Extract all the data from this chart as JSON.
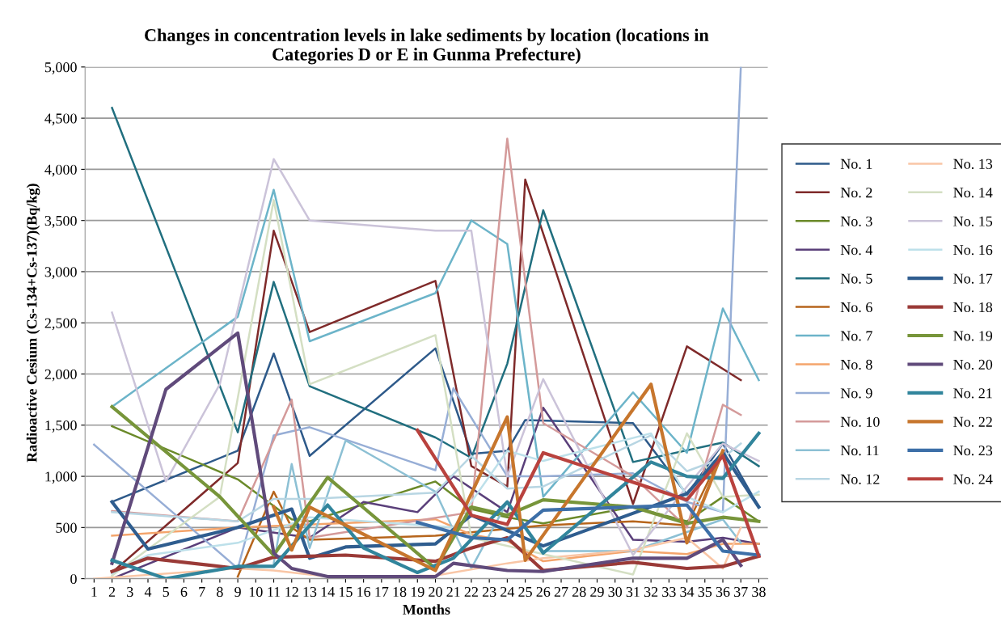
{
  "chart_data": {
    "type": "line",
    "title": "Changes in concentration levels in lake sediments by location (locations in\nCategories D or E in Gunma Prefecture)",
    "xlabel": "Months",
    "ylabel": "Radioactive Cesium (Cs-134+Cs-137)(Bq/kg)",
    "categories": [
      "1",
      "2",
      "3",
      "4",
      "5",
      "6",
      "7",
      "8",
      "9",
      "10",
      "11",
      "12",
      "13",
      "14",
      "15",
      "16",
      "17",
      "18",
      "19",
      "20",
      "21",
      "22",
      "23",
      "24",
      "25",
      "26",
      "27",
      "28",
      "29",
      "30",
      "31",
      "32",
      "33",
      "34",
      "35",
      "36",
      "37",
      "38"
    ],
    "ylim": [
      0,
      5000
    ],
    "yticks": [
      {
        "value": 0,
        "label": "0"
      },
      {
        "value": 500,
        "label": "500"
      },
      {
        "value": 1000,
        "label": "1,000"
      },
      {
        "value": 1500,
        "label": "1,500"
      },
      {
        "value": 2000,
        "label": "2,000"
      },
      {
        "value": 2500,
        "label": "2,500"
      },
      {
        "value": 3000,
        "label": "3,000"
      },
      {
        "value": 3500,
        "label": "3,500"
      },
      {
        "value": 4000,
        "label": "4,000"
      },
      {
        "value": 4500,
        "label": "4,500"
      },
      {
        "value": 5000,
        "label": "5,000"
      }
    ],
    "grid": "y",
    "legend": "right",
    "marker": "none",
    "line_style": "solid",
    "series": [
      {
        "name": "No. 1",
        "color": "#2e5a8a",
        "values": [
          null,
          750,
          null,
          null,
          null,
          null,
          null,
          null,
          1250,
          null,
          2200,
          null,
          1200,
          null,
          null,
          null,
          null,
          null,
          null,
          2250,
          null,
          1220,
          null,
          1250,
          1550,
          null,
          null,
          null,
          null,
          null,
          1520,
          null,
          null,
          820,
          null,
          1320,
          null,
          700
        ]
      },
      {
        "name": "No. 2",
        "color": "#7f2a2a",
        "values": [
          null,
          60,
          null,
          null,
          null,
          null,
          null,
          null,
          1130,
          null,
          3400,
          null,
          2410,
          null,
          null,
          null,
          null,
          null,
          null,
          2910,
          null,
          1100,
          null,
          900,
          3900,
          null,
          null,
          null,
          null,
          null,
          730,
          null,
          null,
          2270,
          null,
          null,
          1940,
          null
        ]
      },
      {
        "name": "No. 3",
        "color": "#6b8a2a",
        "values": [
          null,
          1490,
          null,
          null,
          null,
          null,
          null,
          null,
          970,
          null,
          null,
          580,
          560,
          null,
          null,
          null,
          null,
          null,
          null,
          950,
          null,
          680,
          null,
          600,
          null,
          540,
          null,
          null,
          null,
          null,
          700,
          null,
          null,
          560,
          null,
          800,
          null,
          560
        ]
      },
      {
        "name": "No. 4",
        "color": "#5a3f7a",
        "values": [
          null,
          0,
          null,
          null,
          null,
          null,
          null,
          null,
          500,
          null,
          null,
          null,
          400,
          null,
          null,
          750,
          null,
          null,
          650,
          null,
          1000,
          null,
          null,
          650,
          null,
          1670,
          null,
          null,
          null,
          null,
          380,
          null,
          null,
          360,
          null,
          400,
          null,
          340
        ]
      },
      {
        "name": "No. 5",
        "color": "#216f7f",
        "values": [
          null,
          4600,
          null,
          null,
          null,
          null,
          null,
          null,
          1430,
          null,
          2900,
          null,
          1880,
          null,
          null,
          null,
          null,
          null,
          null,
          1380,
          null,
          1180,
          null,
          2100,
          null,
          3600,
          null,
          null,
          null,
          null,
          1140,
          null,
          null,
          null,
          null,
          1330,
          null,
          1100
        ]
      },
      {
        "name": "No. 6",
        "color": "#b6651c",
        "values": [
          null,
          null,
          null,
          null,
          null,
          null,
          null,
          null,
          20,
          null,
          850,
          500,
          380,
          null,
          null,
          null,
          null,
          null,
          null,
          420,
          null,
          null,
          null,
          null,
          null,
          520,
          null,
          null,
          null,
          null,
          560,
          null,
          null,
          520,
          null,
          1250,
          null,
          null
        ]
      },
      {
        "name": "No. 7",
        "color": "#6cb4c9",
        "values": [
          null,
          1680,
          null,
          null,
          null,
          null,
          null,
          null,
          2560,
          null,
          3800,
          null,
          2320,
          null,
          null,
          null,
          null,
          null,
          null,
          2790,
          null,
          3500,
          null,
          3270,
          null,
          800,
          null,
          null,
          null,
          null,
          1820,
          null,
          null,
          1230,
          null,
          2640,
          null,
          1940
        ]
      },
      {
        "name": "No. 8",
        "color": "#f4a46b",
        "values": [
          null,
          420,
          null,
          null,
          null,
          null,
          null,
          null,
          500,
          null,
          null,
          null,
          null,
          null,
          null,
          null,
          null,
          null,
          null,
          580,
          null,
          430,
          null,
          370,
          null,
          170,
          null,
          null,
          null,
          null,
          270,
          null,
          null,
          240,
          null,
          340,
          null,
          340
        ]
      },
      {
        "name": "No. 9",
        "color": "#97aed6",
        "values": [
          1310,
          null,
          null,
          null,
          null,
          null,
          null,
          null,
          100,
          null,
          1400,
          null,
          1480,
          null,
          null,
          null,
          null,
          null,
          null,
          1060,
          1860,
          null,
          null,
          1000,
          null,
          1000,
          null,
          null,
          null,
          null,
          1030,
          null,
          null,
          750,
          null,
          650,
          5000,
          null
        ]
      },
      {
        "name": "No. 10",
        "color": "#d49a9a",
        "values": [
          null,
          660,
          null,
          null,
          null,
          null,
          null,
          null,
          560,
          null,
          null,
          1750,
          400,
          null,
          null,
          null,
          null,
          null,
          null,
          null,
          null,
          650,
          null,
          4300,
          null,
          1520,
          null,
          null,
          null,
          null,
          1000,
          null,
          null,
          500,
          null,
          1700,
          1600,
          null
        ]
      },
      {
        "name": "No. 11",
        "color": "#8cc0d4",
        "values": [
          null,
          null,
          null,
          null,
          null,
          null,
          null,
          null,
          null,
          null,
          150,
          1120,
          300,
          null,
          1350,
          null,
          null,
          null,
          null,
          850,
          null,
          100,
          null,
          750,
          null,
          270,
          null,
          null,
          null,
          null,
          270,
          null,
          null,
          null,
          null,
          580,
          350,
          null
        ]
      },
      {
        "name": "No. 12",
        "color": "#b8d6e3",
        "values": [
          null,
          650,
          null,
          null,
          null,
          null,
          null,
          null,
          560,
          null,
          780,
          null,
          780,
          null,
          null,
          null,
          null,
          null,
          null,
          840,
          null,
          1200,
          null,
          880,
          null,
          900,
          null,
          null,
          null,
          null,
          null,
          1400,
          null,
          1050,
          null,
          1180,
          1320,
          null
        ]
      },
      {
        "name": "No. 13",
        "color": "#f9c6a6",
        "values": [
          0,
          null,
          null,
          null,
          null,
          null,
          null,
          null,
          100,
          null,
          80,
          null,
          null,
          20,
          null,
          null,
          null,
          null,
          null,
          30,
          null,
          null,
          null,
          150,
          null,
          200,
          null,
          null,
          null,
          null,
          280,
          null,
          null,
          400,
          null,
          100,
          500,
          null
        ]
      },
      {
        "name": "No. 14",
        "color": "#d4dfc3",
        "values": [
          null,
          30,
          null,
          null,
          null,
          null,
          null,
          800,
          null,
          null,
          3700,
          null,
          1900,
          null,
          null,
          null,
          null,
          null,
          null,
          2380,
          null,
          400,
          null,
          null,
          null,
          null,
          null,
          null,
          null,
          null,
          40,
          null,
          null,
          1420,
          null,
          800,
          null,
          820
        ]
      },
      {
        "name": "No. 15",
        "color": "#cbc3d9",
        "values": [
          null,
          2600,
          null,
          null,
          950,
          null,
          null,
          1900,
          null,
          null,
          4100,
          null,
          3500,
          null,
          null,
          null,
          null,
          null,
          null,
          3400,
          null,
          3400,
          null,
          1000,
          null,
          1950,
          null,
          null,
          null,
          null,
          230,
          null,
          null,
          900,
          null,
          1320,
          null,
          1150
        ]
      },
      {
        "name": "No. 16",
        "color": "#bde0ea",
        "values": [
          null,
          50,
          null,
          230,
          null,
          null,
          null,
          null,
          350,
          null,
          null,
          null,
          600,
          null,
          null,
          null,
          null,
          null,
          null,
          null,
          500,
          null,
          null,
          1250,
          null,
          1150,
          null,
          null,
          null,
          null,
          null,
          1420,
          null,
          800,
          null,
          650,
          null,
          850
        ]
      },
      {
        "name": "No. 17",
        "color": "#2f5d8f",
        "values": [
          null,
          750,
          null,
          290,
          null,
          null,
          null,
          null,
          500,
          null,
          null,
          680,
          200,
          null,
          310,
          null,
          null,
          null,
          null,
          340,
          null,
          620,
          null,
          null,
          null,
          320,
          null,
          null,
          null,
          null,
          null,
          null,
          null,
          830,
          null,
          1230,
          null,
          700
        ]
      },
      {
        "name": "No. 18",
        "color": "#9a3a37",
        "values": [
          null,
          70,
          null,
          200,
          null,
          null,
          null,
          null,
          100,
          null,
          210,
          null,
          null,
          null,
          230,
          null,
          null,
          null,
          null,
          170,
          null,
          300,
          null,
          400,
          null,
          80,
          null,
          null,
          null,
          null,
          160,
          null,
          null,
          100,
          null,
          120,
          null,
          220
        ]
      },
      {
        "name": "No. 19",
        "color": "#77953a",
        "values": [
          null,
          1680,
          null,
          null,
          null,
          null,
          null,
          800,
          null,
          null,
          230,
          null,
          null,
          990,
          null,
          null,
          null,
          null,
          null,
          100,
          null,
          700,
          null,
          620,
          null,
          770,
          null,
          null,
          null,
          null,
          700,
          null,
          null,
          540,
          null,
          600,
          null,
          560
        ]
      },
      {
        "name": "No. 20",
        "color": "#604a7b",
        "values": [
          null,
          150,
          null,
          null,
          1850,
          null,
          null,
          null,
          2400,
          null,
          250,
          100,
          null,
          20,
          null,
          null,
          null,
          null,
          null,
          20,
          150,
          null,
          null,
          80,
          null,
          70,
          null,
          null,
          null,
          null,
          200,
          null,
          null,
          200,
          null,
          380,
          130,
          null
        ]
      },
      {
        "name": "No. 21",
        "color": "#31859c",
        "values": [
          null,
          180,
          null,
          null,
          0,
          null,
          null,
          null,
          120,
          null,
          120,
          null,
          null,
          720,
          null,
          300,
          null,
          null,
          60,
          null,
          200,
          null,
          null,
          750,
          null,
          250,
          null,
          null,
          null,
          null,
          null,
          1140,
          null,
          1000,
          null,
          980,
          null,
          1420
        ]
      },
      {
        "name": "No. 22",
        "color": "#c7762d",
        "values": [
          null,
          null,
          null,
          null,
          null,
          null,
          null,
          null,
          null,
          null,
          700,
          280,
          700,
          null,
          null,
          null,
          null,
          null,
          null,
          80,
          null,
          null,
          null,
          1580,
          180,
          null,
          null,
          null,
          null,
          null,
          null,
          1900,
          null,
          350,
          null,
          1250,
          null,
          null
        ]
      },
      {
        "name": "No. 23",
        "color": "#3d6fa8",
        "values": [
          null,
          null,
          null,
          null,
          null,
          null,
          null,
          null,
          null,
          null,
          null,
          null,
          null,
          null,
          null,
          null,
          null,
          null,
          550,
          null,
          null,
          400,
          null,
          380,
          null,
          670,
          null,
          null,
          null,
          null,
          null,
          null,
          null,
          720,
          null,
          270,
          null,
          230
        ]
      },
      {
        "name": "No. 24",
        "color": "#b9423e",
        "values": [
          null,
          null,
          null,
          null,
          null,
          null,
          null,
          null,
          null,
          null,
          null,
          null,
          null,
          null,
          null,
          null,
          null,
          null,
          1450,
          null,
          null,
          620,
          null,
          530,
          null,
          1230,
          null,
          null,
          null,
          null,
          null,
          null,
          null,
          770,
          null,
          1200,
          null,
          220
        ]
      }
    ]
  }
}
